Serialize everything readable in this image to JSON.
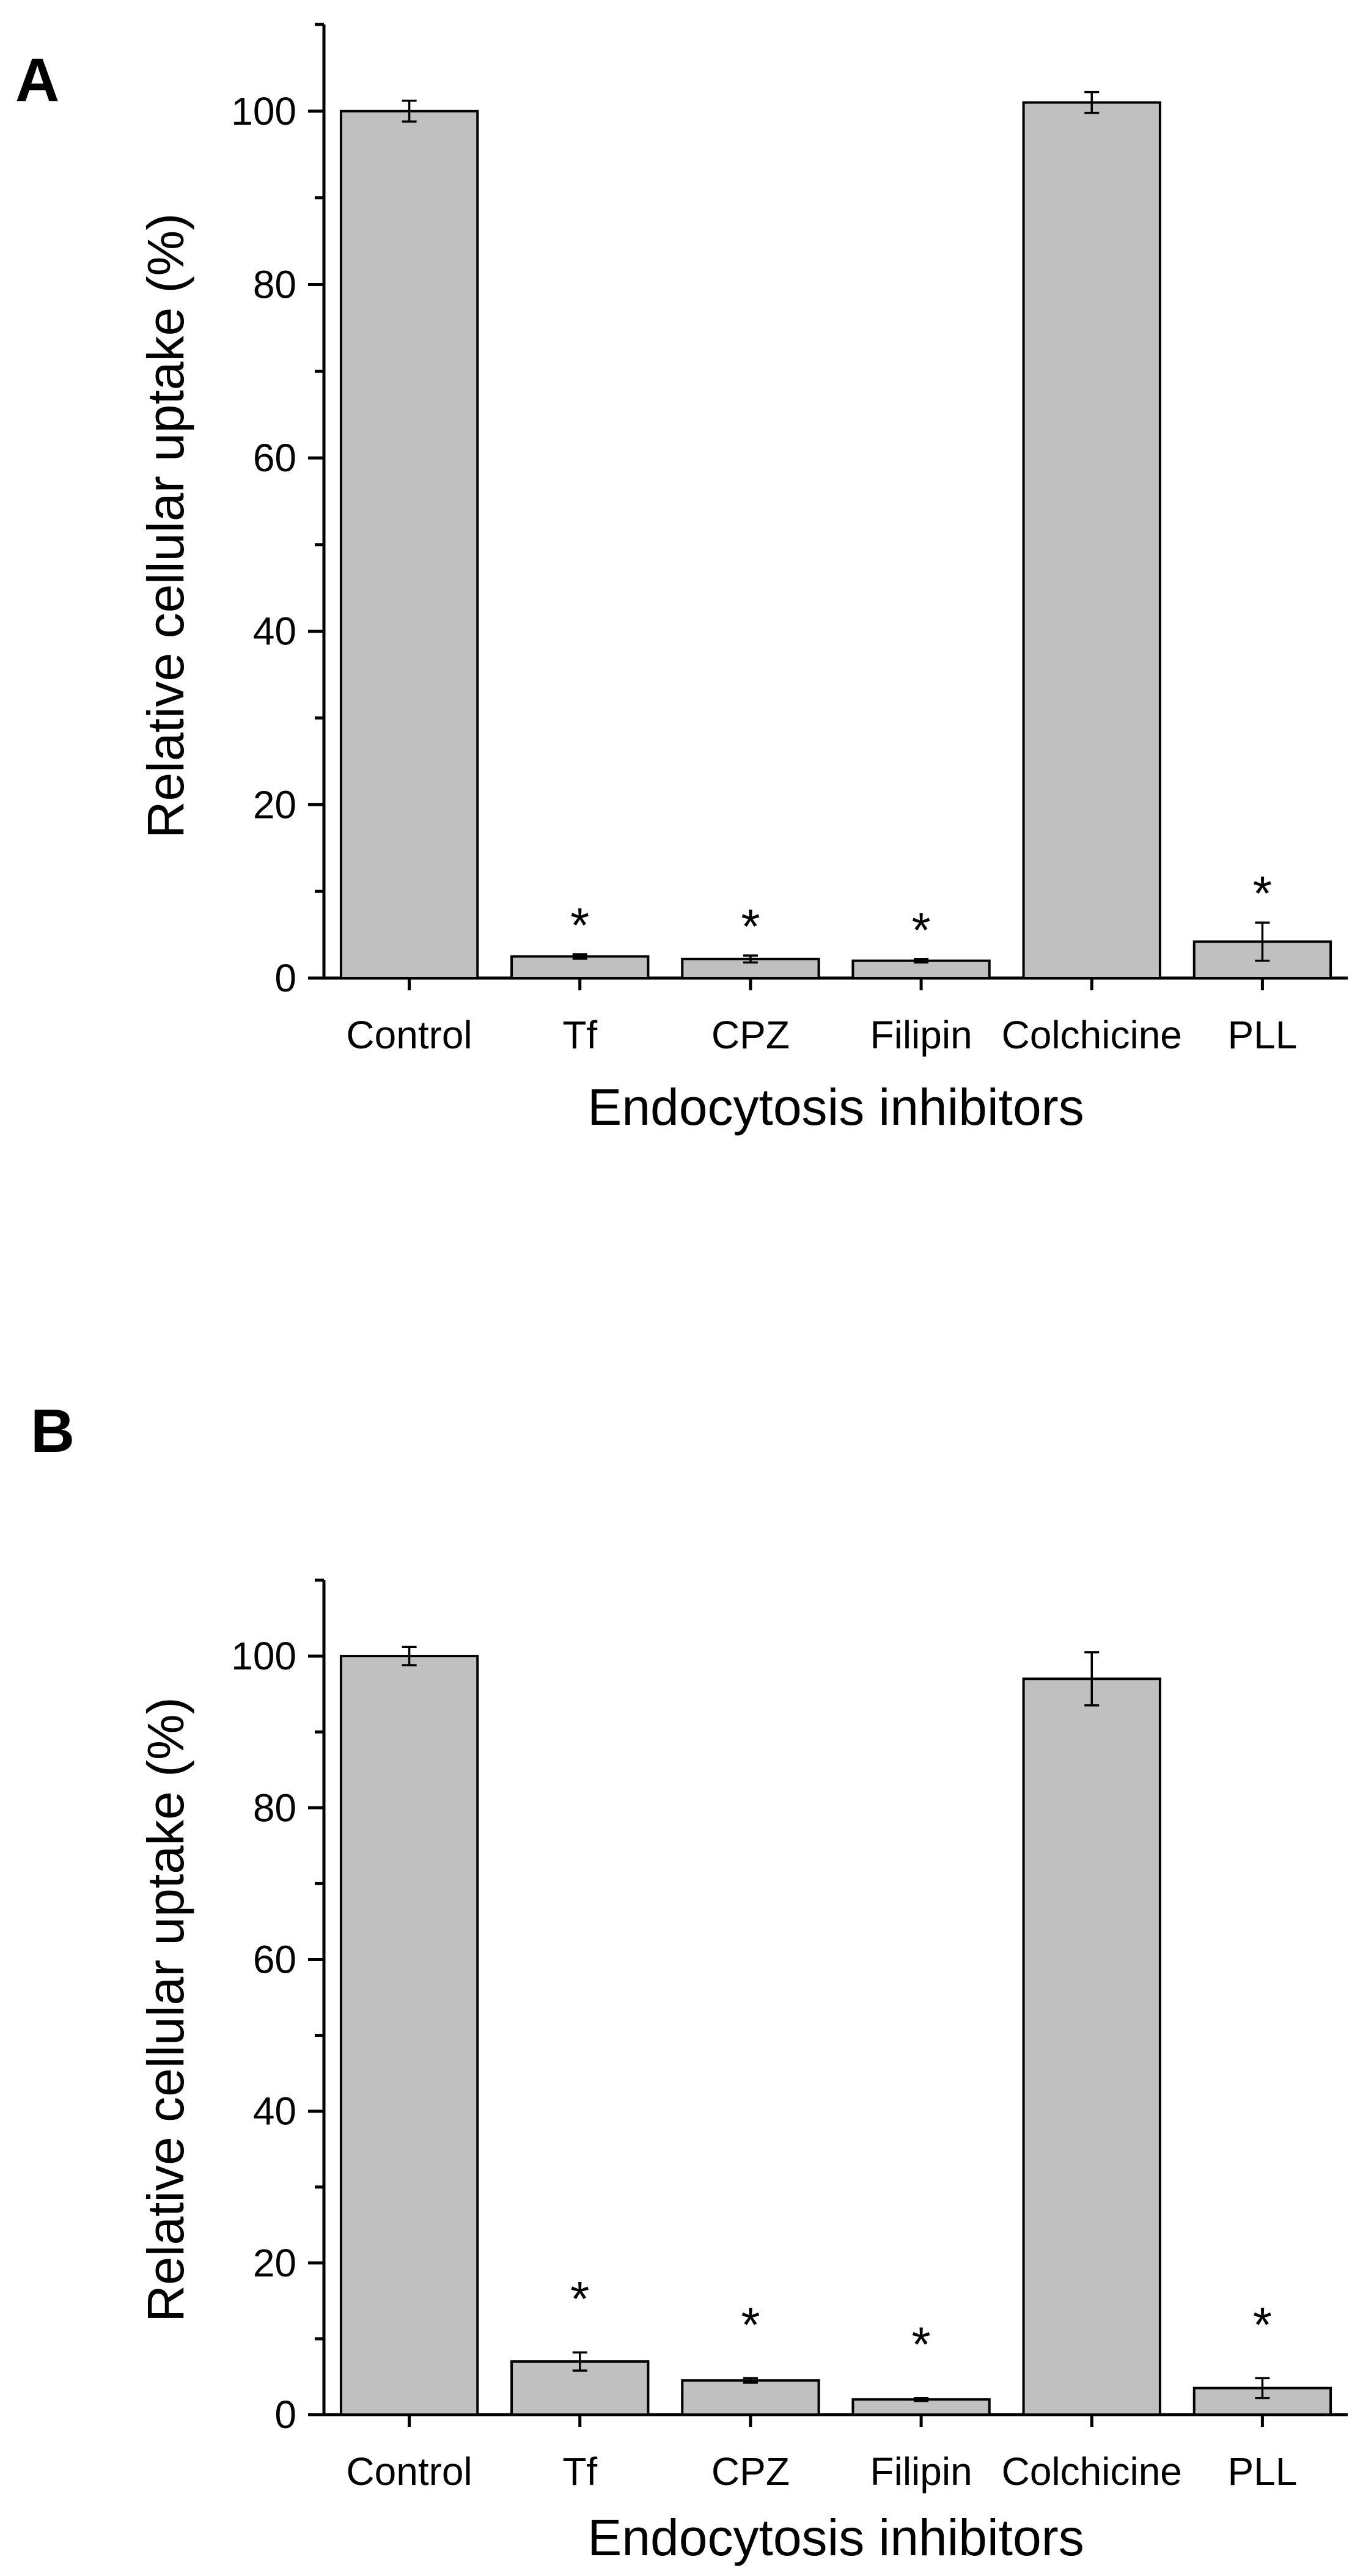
{
  "chart_data": [
    {
      "panel_label": "A",
      "type": "bar",
      "xlabel": "Endocytosis inhibitors",
      "ylabel": "Relative cellular uptake (%)",
      "ylim": [
        0,
        110
      ],
      "yticks": [
        0,
        20,
        40,
        60,
        80,
        100
      ],
      "categories": [
        "Control",
        "Tf",
        "CPZ",
        "Filipin",
        "Colchicine",
        "PLL"
      ],
      "values": [
        100,
        2.5,
        2.2,
        2.0,
        101,
        4.2
      ],
      "errors": [
        1.2,
        0.25,
        0.4,
        0.2,
        1.2,
        2.2
      ],
      "annotations": [
        "",
        "*",
        "*",
        "*",
        "",
        "*"
      ],
      "bar_color": "#c0c0c0",
      "grid": false
    },
    {
      "panel_label": "B",
      "type": "bar",
      "xlabel": "Endocytosis inhibitors",
      "ylabel": "Relative cellular uptake (%)",
      "ylim": [
        0,
        110
      ],
      "yticks": [
        0,
        20,
        40,
        60,
        80,
        100
      ],
      "categories": [
        "Control",
        "Tf",
        "CPZ",
        "Filipin",
        "Colchicine",
        "PLL"
      ],
      "values": [
        100,
        7.0,
        4.5,
        2.0,
        97,
        3.5
      ],
      "errors": [
        1.2,
        1.2,
        0.3,
        0.2,
        3.5,
        1.3
      ],
      "annotations": [
        "",
        "*",
        "*",
        "*",
        "",
        "*"
      ],
      "bar_color": "#c0c0c0",
      "grid": false
    }
  ]
}
